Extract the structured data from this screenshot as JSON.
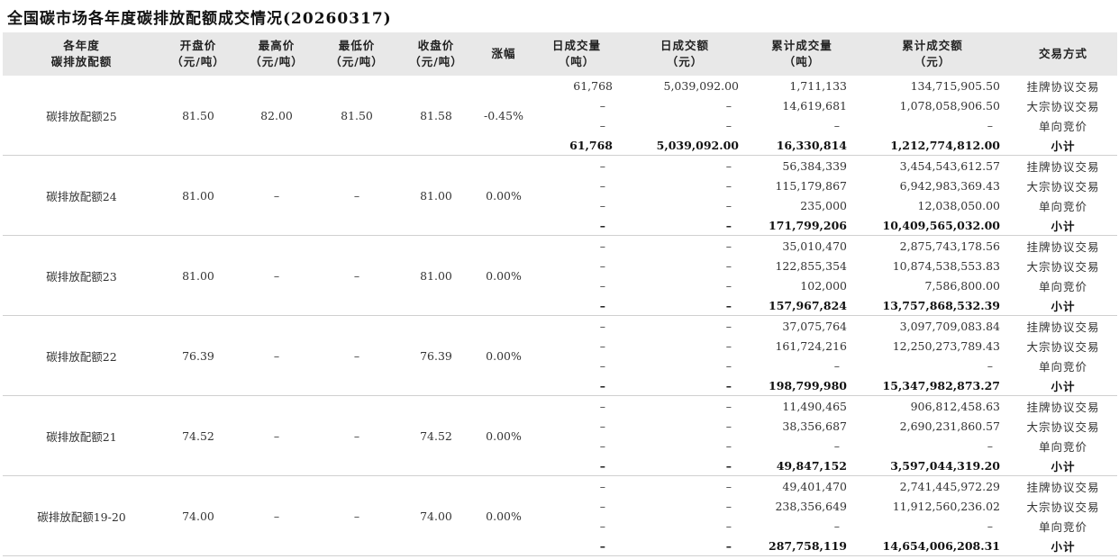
{
  "title": "全国碳市场各年度碳排放配额成交情况(20260317)",
  "headers": [
    {
      "l1": "各年度",
      "l2": "碳排放配额"
    },
    {
      "l1": "开盘价",
      "l2": "（元/吨）"
    },
    {
      "l1": "最高价",
      "l2": "（元/吨）"
    },
    {
      "l1": "最低价",
      "l2": "（元/吨）"
    },
    {
      "l1": "收盘价",
      "l2": "（元/吨）"
    },
    {
      "l1": "涨幅",
      "l2": ""
    },
    {
      "l1": "日成交量",
      "l2": "（吨）"
    },
    {
      "l1": "日成交额",
      "l2": "（元）"
    },
    {
      "l1": "累计成交量",
      "l2": "（吨）"
    },
    {
      "l1": "累计成交额",
      "l2": "（元）"
    },
    {
      "l1": "交易方式",
      "l2": ""
    }
  ],
  "groups": [
    {
      "name": "碳排放配额25",
      "open": "81.50",
      "high": "82.00",
      "low": "81.50",
      "close": "81.58",
      "change": "-0.45%",
      "rows": [
        {
          "dvol": "61,768",
          "damt": "5,039,092.00",
          "cvol": "1,711,133",
          "camt": "134,715,905.50",
          "method": "挂牌协议交易"
        },
        {
          "dvol": "-",
          "damt": "-",
          "cvol": "14,619,681",
          "camt": "1,078,058,906.50",
          "method": "大宗协议交易"
        },
        {
          "dvol": "-",
          "damt": "-",
          "cvol": "-",
          "camt": "-",
          "method": "单向竞价"
        },
        {
          "dvol": "61,768",
          "damt": "5,039,092.00",
          "cvol": "16,330,814",
          "camt": "1,212,774,812.00",
          "method": "小计"
        }
      ]
    },
    {
      "name": "碳排放配额24",
      "open": "81.00",
      "high": "-",
      "low": "-",
      "close": "81.00",
      "change": "0.00%",
      "rows": [
        {
          "dvol": "-",
          "damt": "-",
          "cvol": "56,384,339",
          "camt": "3,454,543,612.57",
          "method": "挂牌协议交易"
        },
        {
          "dvol": "-",
          "damt": "-",
          "cvol": "115,179,867",
          "camt": "6,942,983,369.43",
          "method": "大宗协议交易"
        },
        {
          "dvol": "-",
          "damt": "-",
          "cvol": "235,000",
          "camt": "12,038,050.00",
          "method": "单向竞价"
        },
        {
          "dvol": "-",
          "damt": "-",
          "cvol": "171,799,206",
          "camt": "10,409,565,032.00",
          "method": "小计"
        }
      ]
    },
    {
      "name": "碳排放配额23",
      "open": "81.00",
      "high": "-",
      "low": "-",
      "close": "81.00",
      "change": "0.00%",
      "rows": [
        {
          "dvol": "-",
          "damt": "-",
          "cvol": "35,010,470",
          "camt": "2,875,743,178.56",
          "method": "挂牌协议交易"
        },
        {
          "dvol": "-",
          "damt": "-",
          "cvol": "122,855,354",
          "camt": "10,874,538,553.83",
          "method": "大宗协议交易"
        },
        {
          "dvol": "-",
          "damt": "-",
          "cvol": "102,000",
          "camt": "7,586,800.00",
          "method": "单向竞价"
        },
        {
          "dvol": "-",
          "damt": "-",
          "cvol": "157,967,824",
          "camt": "13,757,868,532.39",
          "method": "小计"
        }
      ]
    },
    {
      "name": "碳排放配额22",
      "open": "76.39",
      "high": "-",
      "low": "-",
      "close": "76.39",
      "change": "0.00%",
      "rows": [
        {
          "dvol": "-",
          "damt": "-",
          "cvol": "37,075,764",
          "camt": "3,097,709,083.84",
          "method": "挂牌协议交易"
        },
        {
          "dvol": "-",
          "damt": "-",
          "cvol": "161,724,216",
          "camt": "12,250,273,789.43",
          "method": "大宗协议交易"
        },
        {
          "dvol": "-",
          "damt": "-",
          "cvol": "-",
          "camt": "-",
          "method": "单向竞价"
        },
        {
          "dvol": "-",
          "damt": "-",
          "cvol": "198,799,980",
          "camt": "15,347,982,873.27",
          "method": "小计"
        }
      ]
    },
    {
      "name": "碳排放配额21",
      "open": "74.52",
      "high": "-",
      "low": "-",
      "close": "74.52",
      "change": "0.00%",
      "rows": [
        {
          "dvol": "-",
          "damt": "-",
          "cvol": "11,490,465",
          "camt": "906,812,458.63",
          "method": "挂牌协议交易"
        },
        {
          "dvol": "-",
          "damt": "-",
          "cvol": "38,356,687",
          "camt": "2,690,231,860.57",
          "method": "大宗协议交易"
        },
        {
          "dvol": "-",
          "damt": "-",
          "cvol": "-",
          "camt": "-",
          "method": "单向竞价"
        },
        {
          "dvol": "-",
          "damt": "-",
          "cvol": "49,847,152",
          "camt": "3,597,044,319.20",
          "method": "小计"
        }
      ]
    },
    {
      "name": "碳排放配额19-20",
      "open": "74.00",
      "high": "-",
      "low": "-",
      "close": "74.00",
      "change": "0.00%",
      "rows": [
        {
          "dvol": "-",
          "damt": "-",
          "cvol": "49,401,470",
          "camt": "2,741,445,972.29",
          "method": "挂牌协议交易"
        },
        {
          "dvol": "-",
          "damt": "-",
          "cvol": "238,356,649",
          "camt": "11,912,560,236.02",
          "method": "大宗协议交易"
        },
        {
          "dvol": "-",
          "damt": "-",
          "cvol": "-",
          "camt": "-",
          "method": "单向竞价"
        },
        {
          "dvol": "-",
          "damt": "-",
          "cvol": "287,758,119",
          "camt": "14,654,006,208.31",
          "method": "小计"
        }
      ]
    }
  ]
}
